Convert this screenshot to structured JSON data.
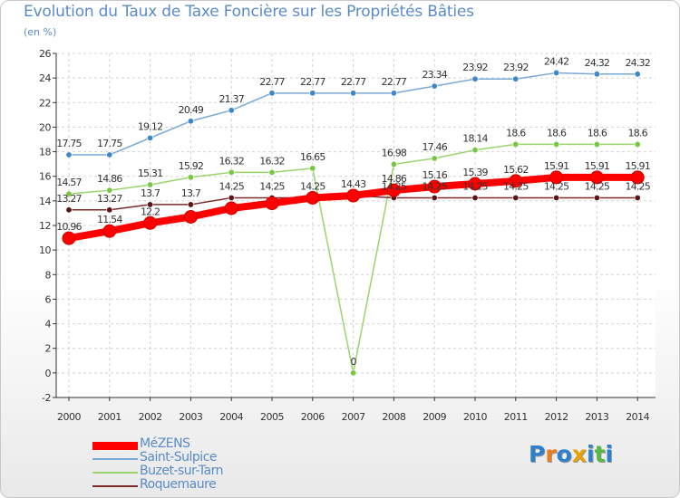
{
  "title": "Evolution du Taux de Taxe Foncière sur les Propriétés Bâties",
  "subtitle": "(en %)",
  "logo": {
    "text": "Proxiti",
    "letters": [
      "P",
      "r",
      "o",
      "x",
      "i",
      "t",
      "i"
    ],
    "colors": [
      "#2f7fd0",
      "#f07a1a",
      "#2f7fd0",
      "#e8a000",
      "#2f7fd0",
      "#57b846",
      "#2f7fd0"
    ]
  },
  "chart_data": {
    "type": "line",
    "title": "Evolution du Taux de Taxe Foncière sur les Propriétés Bâties",
    "ylabel": "(en %)",
    "xlabel": "",
    "categories": [
      "2000",
      "2001",
      "2002",
      "2003",
      "2004",
      "2005",
      "2006",
      "2007",
      "2008",
      "2009",
      "2010",
      "2011",
      "2012",
      "2013",
      "2014"
    ],
    "ylim": [
      -2,
      26
    ],
    "yticks": [
      -2,
      0,
      2,
      4,
      6,
      8,
      10,
      12,
      14,
      16,
      18,
      20,
      22,
      24,
      26
    ],
    "legend_position": "bottom-left",
    "series": [
      {
        "name": "MéZENS",
        "color": "#ff0000",
        "marker": "#ff0000",
        "width": 8,
        "label_color": "#333333",
        "values": [
          10.96,
          11.54,
          12.2,
          12.7,
          13.4,
          13.8,
          14.25,
          14.43,
          14.86,
          15.16,
          15.39,
          15.62,
          15.91,
          15.91,
          15.91
        ],
        "labels": [
          "10.96",
          "11.54",
          "12.2",
          "",
          "",
          "",
          "",
          "",
          "14.86",
          "15.16",
          "15.39",
          "15.62",
          "15.91",
          "15.91",
          "15.91"
        ]
      },
      {
        "name": "Saint-Sulpice",
        "color": "#79a9d6",
        "marker": "#3f87c8",
        "width": 1.5,
        "label_color": "#333333",
        "values": [
          17.75,
          17.75,
          19.12,
          20.49,
          21.37,
          22.77,
          22.77,
          22.77,
          22.77,
          23.34,
          23.92,
          23.92,
          24.42,
          24.32,
          24.32
        ],
        "labels": [
          "17.75",
          "17.75",
          "19.12",
          "20.49",
          "21.37",
          "22.77",
          "22.77",
          "22.77",
          "22.77",
          "23.34",
          "23.92",
          "23.92",
          "24.42",
          "24.32",
          "24.32"
        ]
      },
      {
        "name": "Buzet-sur-Tarn",
        "color": "#9ad56b",
        "marker": "#77c743",
        "width": 1.5,
        "label_color": "#333333",
        "values": [
          14.57,
          14.86,
          15.31,
          15.92,
          16.32,
          16.32,
          16.65,
          0,
          16.98,
          17.46,
          18.14,
          18.6,
          18.6,
          18.6,
          18.6
        ],
        "labels": [
          "14.57",
          "14.86",
          "15.31",
          "15.92",
          "16.32",
          "16.32",
          "16.65",
          "0",
          "16.98",
          "17.46",
          "18.14",
          "18.6",
          "18.6",
          "18.6",
          "18.6"
        ]
      },
      {
        "name": "Roquemaure",
        "color": "#7a2a2a",
        "marker": "#5a1616",
        "width": 1.5,
        "label_color": "#333333",
        "values": [
          13.27,
          13.27,
          13.7,
          13.7,
          14.25,
          14.25,
          14.25,
          14.43,
          14.25,
          14.25,
          14.25,
          14.25,
          14.25,
          14.25,
          14.25
        ],
        "labels": [
          "13.27",
          "13.27",
          "13.7",
          "13.7",
          "14.25",
          "14.25",
          "14.25",
          "14.43",
          "14.25",
          "14.25",
          "14.25",
          "14.25",
          "14.25",
          "14.25",
          "14.25"
        ]
      }
    ]
  }
}
